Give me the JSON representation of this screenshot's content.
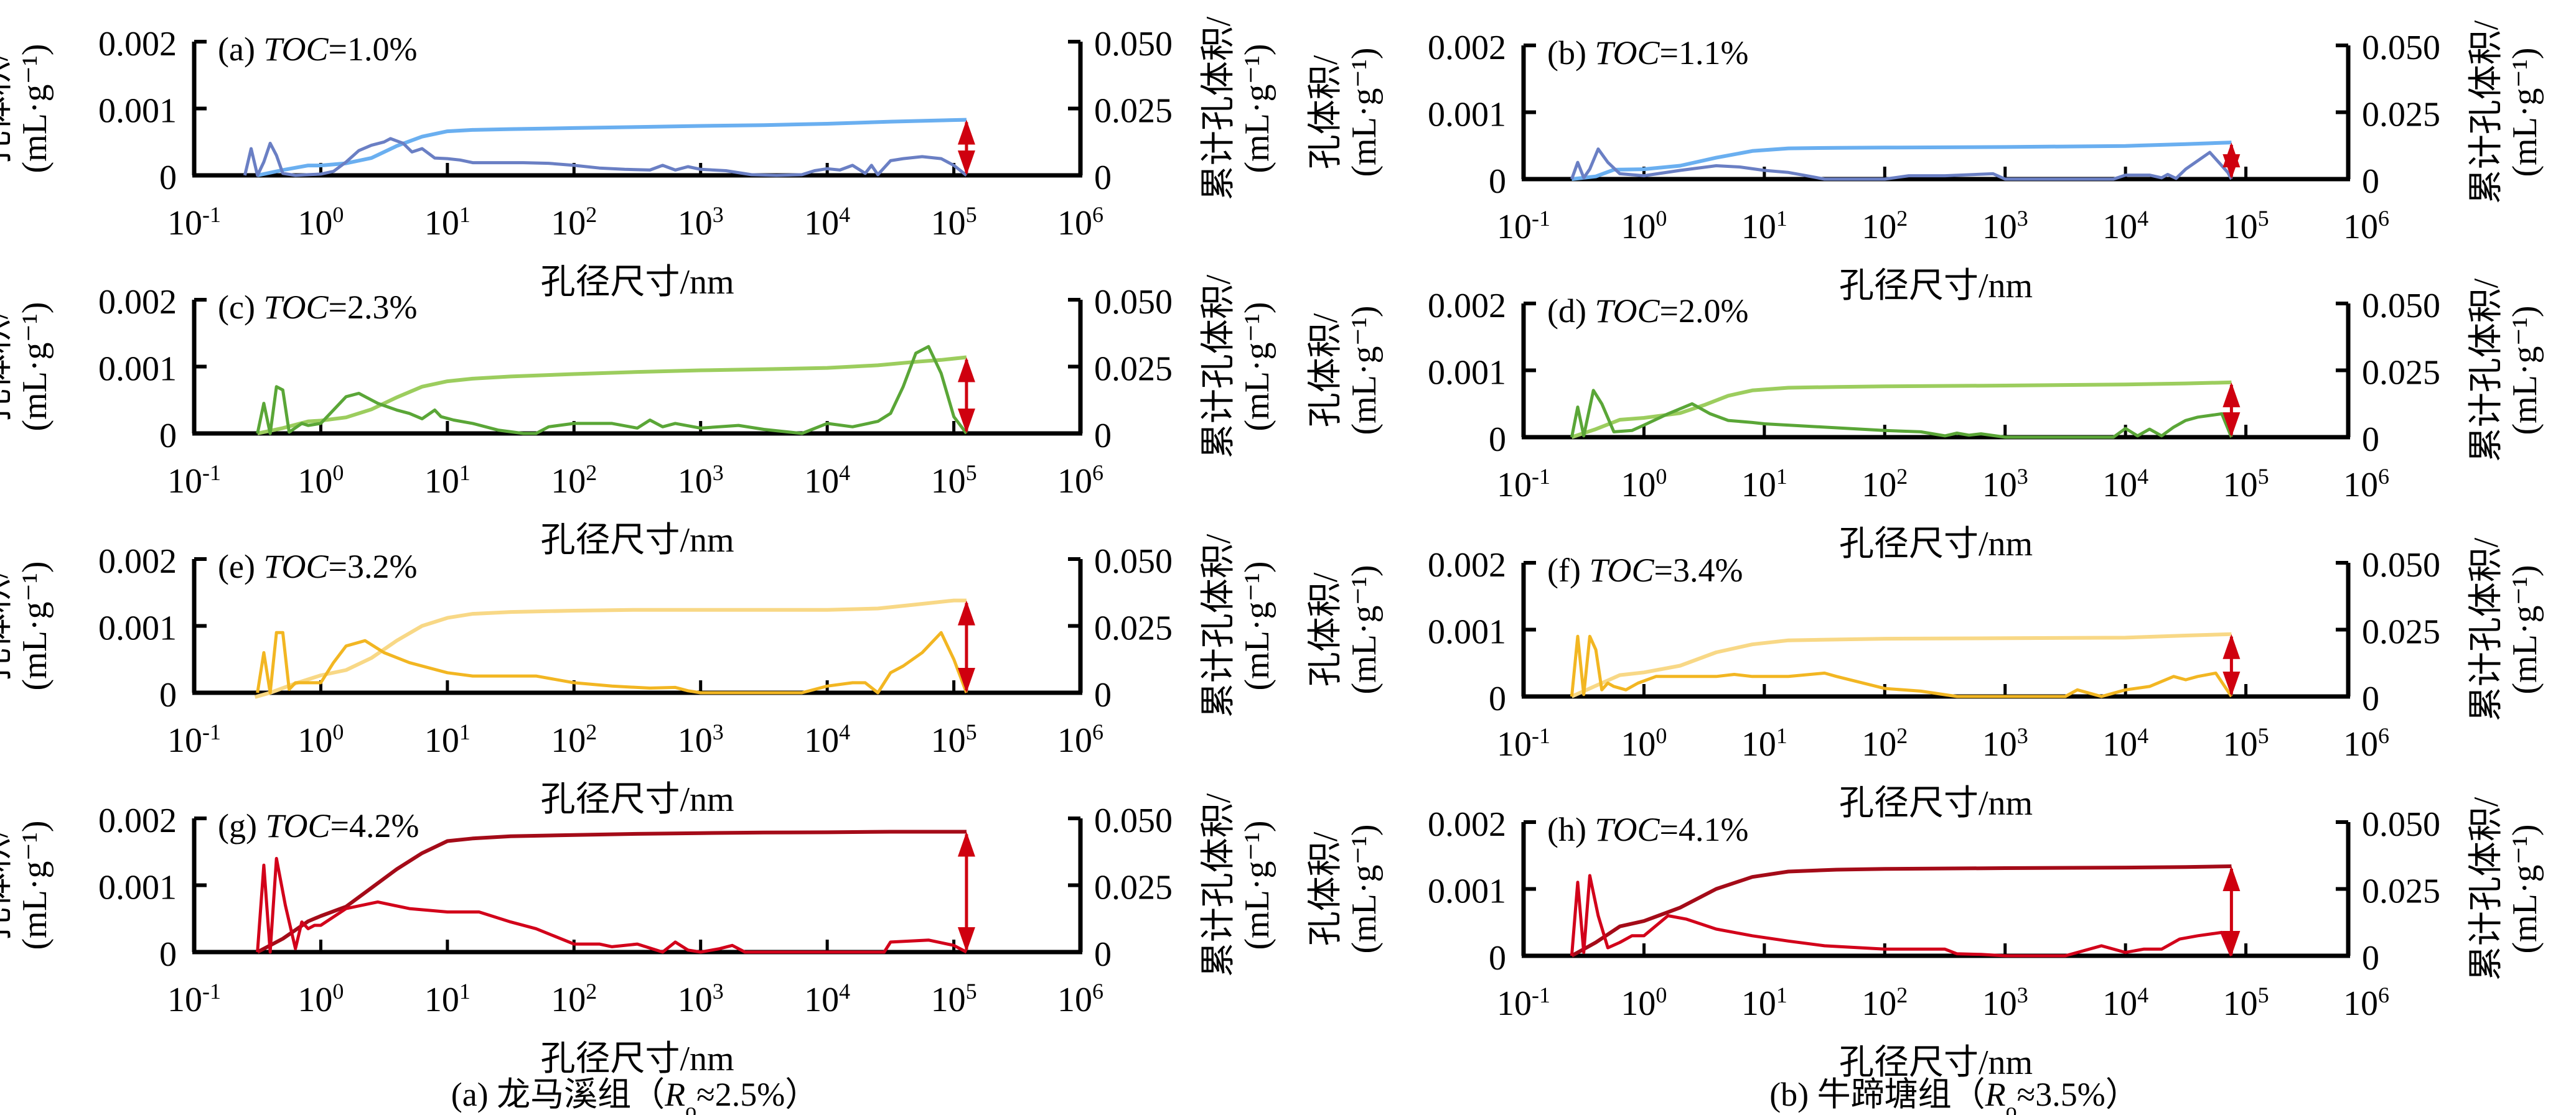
{
  "chart_data": {
    "type": "line",
    "figure_captions": [
      {
        "id": "a",
        "prefix": "(a) 龙马溪组（",
        "symbol": "R",
        "subscript": "o",
        "suffix": "≈2.5%）"
      },
      {
        "id": "b",
        "prefix": "(b) 牛蹄塘组（",
        "symbol": "R",
        "subscript": "o",
        "suffix": "≈3.5%）"
      }
    ],
    "xlabel": "孔径尺寸/nm",
    "ylabel_left": [
      "孔体积/",
      "(mL·g⁻¹)"
    ],
    "ylabel_right": [
      "累计孔体积/",
      "(mL·g⁻¹)"
    ],
    "x_scale": "log",
    "x_ticks": [
      {
        "base": "10",
        "exp": "-1",
        "value": -1
      },
      {
        "base": "10",
        "exp": "0",
        "value": 0
      },
      {
        "base": "10",
        "exp": "1",
        "value": 1
      },
      {
        "base": "10",
        "exp": "2",
        "value": 2
      },
      {
        "base": "10",
        "exp": "3",
        "value": 3
      },
      {
        "base": "10",
        "exp": "4",
        "value": 4
      },
      {
        "base": "10",
        "exp": "5",
        "value": 5
      },
      {
        "base": "10",
        "exp": "6",
        "value": 6
      }
    ],
    "y_left_ticks": [
      "0",
      "0.001",
      "0.002"
    ],
    "y_left_range": [
      0,
      0.002
    ],
    "y_right_ticks": [
      "0",
      "0.025",
      "0.050"
    ],
    "y_right_range": [
      0,
      0.05
    ],
    "colors": {
      "blue_dist": "#6a7fc4",
      "blue_cum": "#6aaff0",
      "green_dist": "#5aa637",
      "green_cum": "#9ccd5e",
      "yellow_dist": "#f2b622",
      "yellow_cum": "#f8d886",
      "red_dist": "#d2001a",
      "red_cum": "#a40b18",
      "arrow": "#cf000f",
      "axis": "#000000"
    },
    "panels": [
      {
        "id": "a",
        "label_prefix": "(a) ",
        "label_italic": "TOC",
        "label_suffix": "=1.0%",
        "column": "left",
        "row": 0,
        "palette": "blue",
        "x_max_log": 6,
        "arrow_x_log": 5.1,
        "dist_log_x": [
          -0.6,
          -0.55,
          -0.5,
          -0.45,
          -0.4,
          -0.35,
          -0.3,
          -0.2,
          -0.1,
          0,
          0.1,
          0.2,
          0.3,
          0.4,
          0.5,
          0.55,
          0.65,
          0.72,
          0.8,
          0.9,
          1,
          1.1,
          1.2,
          1.4,
          1.6,
          1.8,
          2,
          2.2,
          2.4,
          2.6,
          2.7,
          2.8,
          2.9,
          3,
          3.2,
          3.4,
          3.6,
          3.8,
          3.9,
          4,
          4.1,
          4.2,
          4.3,
          4.35,
          4.4,
          4.5,
          4.6,
          4.75,
          4.9,
          5.0,
          5.1
        ],
        "dist_y": [
          0,
          0.0004,
          0,
          0.0002,
          0.00048,
          0.0003,
          3e-05,
          0,
          1e-05,
          2e-05,
          6e-05,
          0.0002,
          0.00037,
          0.00045,
          0.0005,
          0.00055,
          0.00048,
          0.00035,
          0.0004,
          0.00026,
          0.00025,
          0.00023,
          0.00019,
          0.00019,
          0.00019,
          0.00018,
          0.00015,
          0.00011,
          9e-05,
          8e-05,
          0.00015,
          8e-05,
          0.00013,
          9e-05,
          7e-05,
          1e-05,
          0,
          1e-05,
          7e-05,
          0.0001,
          8e-05,
          0.00015,
          3e-05,
          0.00015,
          1e-05,
          0.00022,
          0.00025,
          0.00028,
          0.00025,
          0.00015,
          0
        ],
        "cum_log_x": [
          -0.5,
          -0.3,
          -0.1,
          0,
          0.2,
          0.4,
          0.6,
          0.8,
          1,
          1.2,
          1.5,
          2,
          2.5,
          3,
          3.5,
          4,
          4.5,
          5.1
        ],
        "cum_y": [
          0,
          0.002,
          0.0037,
          0.0037,
          0.0045,
          0.0065,
          0.011,
          0.0145,
          0.0165,
          0.017,
          0.0173,
          0.0177,
          0.0181,
          0.0185,
          0.0188,
          0.0193,
          0.0201,
          0.0208
        ]
      },
      {
        "id": "b",
        "label_prefix": "(b) ",
        "label_italic": "TOC",
        "label_suffix": "=1.1%",
        "column": "right",
        "row": 0,
        "palette": "blue",
        "x_max_log": 5.85,
        "arrow_x_log": 4.88,
        "dist_log_x": [
          -0.6,
          -0.55,
          -0.5,
          -0.45,
          -0.38,
          -0.3,
          -0.2,
          0,
          0.3,
          0.6,
          0.8,
          1,
          1.2,
          1.35,
          1.5,
          1.8,
          2,
          2.2,
          2.5,
          2.9,
          3,
          3.5,
          3.9,
          4,
          4.2,
          4.3,
          4.35,
          4.42,
          4.5,
          4.7,
          4.85,
          4.88
        ],
        "dist_y": [
          0,
          0.00025,
          2e-05,
          0.00015,
          0.00045,
          0.00025,
          8e-05,
          5e-05,
          0.00013,
          0.0002,
          0.00018,
          0.00013,
          0.0001,
          5e-05,
          0,
          0,
          0,
          5e-05,
          5e-05,
          8e-05,
          0,
          0,
          0,
          6e-05,
          6e-05,
          2e-05,
          7e-05,
          1e-05,
          0.00015,
          0.0004,
          0.0001,
          0
        ],
        "cum_log_x": [
          -0.6,
          -0.4,
          -0.25,
          0,
          0.3,
          0.6,
          0.9,
          1.2,
          1.6,
          2,
          3,
          4,
          4.5,
          4.88
        ],
        "cum_y": [
          0,
          0.001,
          0.0035,
          0.0037,
          0.005,
          0.008,
          0.0105,
          0.0115,
          0.0117,
          0.0118,
          0.012,
          0.0124,
          0.0131,
          0.0137
        ]
      },
      {
        "id": "c",
        "label_prefix": "(c) ",
        "label_italic": "TOC",
        "label_suffix": "=2.3%",
        "column": "left",
        "row": 1,
        "palette": "green",
        "x_max_log": 6,
        "arrow_x_log": 5.1,
        "dist_log_x": [
          -0.5,
          -0.45,
          -0.4,
          -0.35,
          -0.3,
          -0.25,
          -0.15,
          -0.1,
          0,
          0.1,
          0.2,
          0.3,
          0.45,
          0.6,
          0.7,
          0.8,
          0.9,
          0.95,
          1.05,
          1.2,
          1.4,
          1.6,
          1.7,
          1.8,
          2,
          2.3,
          2.5,
          2.6,
          2.7,
          2.8,
          3,
          3.3,
          3.5,
          3.8,
          4,
          4.2,
          4.4,
          4.5,
          4.6,
          4.7,
          4.8,
          4.9,
          5.0,
          5.1
        ],
        "dist_y": [
          0,
          0.00045,
          0,
          0.0007,
          0.00065,
          2e-05,
          0.00015,
          0.00012,
          0.00015,
          0.00035,
          0.00055,
          0.0006,
          0.00045,
          0.00035,
          0.0003,
          0.00022,
          0.00035,
          0.00025,
          0.0002,
          0.00015,
          5e-05,
          0,
          0,
          0.0001,
          0.00015,
          0.00015,
          8e-05,
          0.0002,
          0.0001,
          0.00015,
          8e-05,
          0.00012,
          6e-05,
          0,
          0.00015,
          0.0001,
          0.00018,
          0.0003,
          0.0007,
          0.0012,
          0.0013,
          0.0009,
          0.00025,
          0
        ],
        "cum_log_x": [
          -0.5,
          -0.3,
          -0.1,
          0,
          0.2,
          0.4,
          0.6,
          0.8,
          1,
          1.2,
          1.5,
          2,
          2.5,
          3,
          3.5,
          4,
          4.4,
          4.7,
          4.9,
          5.1
        ],
        "cum_y": [
          0,
          0.002,
          0.0045,
          0.0048,
          0.006,
          0.009,
          0.0135,
          0.0175,
          0.0195,
          0.0205,
          0.0213,
          0.0222,
          0.023,
          0.0236,
          0.024,
          0.0245,
          0.0255,
          0.0268,
          0.0275,
          0.0285
        ]
      },
      {
        "id": "d",
        "label_prefix": "(d) ",
        "label_italic": "TOC",
        "label_suffix": "=2.0%",
        "column": "right",
        "row": 1,
        "palette": "green",
        "x_max_log": 5.85,
        "arrow_x_log": 4.88,
        "dist_log_x": [
          -0.6,
          -0.55,
          -0.5,
          -0.42,
          -0.35,
          -0.25,
          -0.1,
          0,
          0.2,
          0.4,
          0.55,
          0.7,
          0.9,
          1,
          1.5,
          2,
          2.3,
          2.5,
          2.6,
          2.7,
          2.8,
          3,
          3.5,
          3.9,
          4,
          4.1,
          4.2,
          4.3,
          4.4,
          4.5,
          4.6,
          4.8,
          4.88
        ],
        "dist_y": [
          0,
          0.00045,
          2e-05,
          0.0007,
          0.0005,
          8e-05,
          0.0001,
          0.00018,
          0.00035,
          0.0005,
          0.00035,
          0.00025,
          0.00022,
          0.0002,
          0.00015,
          0.0001,
          8e-05,
          2e-05,
          6e-05,
          3e-05,
          5e-05,
          0,
          0,
          0,
          0.00013,
          2e-05,
          0.00012,
          2e-05,
          0.00015,
          0.00025,
          0.0003,
          0.00035,
          0
        ],
        "cum_log_x": [
          -0.6,
          -0.4,
          -0.2,
          0,
          0.3,
          0.5,
          0.7,
          0.9,
          1.2,
          1.6,
          2,
          3,
          4,
          4.5,
          4.88
        ],
        "cum_y": [
          0,
          0.003,
          0.0065,
          0.0072,
          0.009,
          0.012,
          0.0155,
          0.0175,
          0.0185,
          0.0188,
          0.019,
          0.0193,
          0.0197,
          0.0201,
          0.0205
        ]
      },
      {
        "id": "e",
        "label_prefix": "(e) ",
        "label_italic": "TOC",
        "label_suffix": "=3.2%",
        "column": "left",
        "row": 2,
        "palette": "yellow",
        "x_max_log": 6,
        "arrow_x_log": 5.1,
        "dist_log_x": [
          -0.5,
          -0.45,
          -0.4,
          -0.35,
          -0.3,
          -0.25,
          -0.2,
          -0.1,
          0,
          0.1,
          0.2,
          0.35,
          0.5,
          0.7,
          0.9,
          1,
          1.2,
          1.5,
          1.7,
          2,
          2.3,
          2.6,
          2.8,
          2.9,
          3,
          3.5,
          3.8,
          4,
          4.2,
          4.3,
          4.4,
          4.5,
          4.6,
          4.75,
          4.9,
          5.0,
          5.1
        ],
        "dist_y": [
          0,
          0.0006,
          0,
          0.0009,
          0.0009,
          5e-05,
          0.00015,
          0.00015,
          0.00015,
          0.00045,
          0.0007,
          0.00078,
          0.0006,
          0.00045,
          0.00035,
          0.0003,
          0.00025,
          0.00025,
          0.00025,
          0.00015,
          0.0001,
          7e-05,
          8e-05,
          3e-05,
          0,
          0,
          0,
          0.0001,
          0.00015,
          0.00015,
          0,
          0.0003,
          0.0004,
          0.0006,
          0.0009,
          0.0005,
          0
        ],
        "cum_log_x": [
          -0.52,
          -0.4,
          -0.2,
          0,
          0.2,
          0.4,
          0.6,
          0.8,
          1,
          1.2,
          1.5,
          2,
          2.5,
          3,
          3.5,
          4,
          4.4,
          4.7,
          5.0,
          5.1
        ],
        "cum_y": [
          -0.0016,
          0,
          0.0035,
          0.0065,
          0.0085,
          0.013,
          0.0195,
          0.025,
          0.028,
          0.0295,
          0.0302,
          0.0307,
          0.031,
          0.031,
          0.031,
          0.031,
          0.0315,
          0.033,
          0.0345,
          0.0345
        ]
      },
      {
        "id": "f",
        "label_prefix": "(f) ",
        "label_italic": "TOC",
        "label_suffix": "=3.4%",
        "column": "right",
        "row": 2,
        "palette": "yellow",
        "x_max_log": 5.85,
        "arrow_x_log": 4.88,
        "dist_log_x": [
          -0.6,
          -0.55,
          -0.5,
          -0.45,
          -0.4,
          -0.35,
          -0.3,
          -0.25,
          -0.15,
          -0.05,
          0.1,
          0.3,
          0.6,
          0.75,
          0.9,
          1.2,
          1.5,
          1.6,
          2,
          2.3,
          2.6,
          3,
          3.5,
          3.6,
          3.8,
          4,
          4.2,
          4.4,
          4.5,
          4.6,
          4.75,
          4.88
        ],
        "dist_y": [
          0,
          0.0009,
          3e-05,
          0.0009,
          0.0007,
          0.0001,
          0.0002,
          0.00015,
          0.0001,
          0.0002,
          0.0003,
          0.0003,
          0.0003,
          0.00033,
          0.0003,
          0.0003,
          0.00035,
          0.0003,
          0.00012,
          8e-05,
          0,
          0,
          0,
          0.0001,
          0,
          0.0001,
          0.00015,
          0.0003,
          0.00025,
          0.0003,
          0.00035,
          0
        ],
        "cum_log_x": [
          -0.6,
          -0.4,
          -0.2,
          0,
          0.3,
          0.6,
          0.9,
          1.2,
          1.6,
          2,
          3,
          4,
          4.5,
          4.88
        ],
        "cum_y": [
          0,
          0.004,
          0.008,
          0.009,
          0.0115,
          0.0165,
          0.0195,
          0.021,
          0.0213,
          0.0216,
          0.0218,
          0.022,
          0.0228,
          0.0233
        ]
      },
      {
        "id": "g",
        "label_prefix": "(g) ",
        "label_italic": "TOC",
        "label_suffix": "=4.2%",
        "column": "left",
        "row": 3,
        "palette": "red",
        "x_max_log": 6,
        "arrow_x_log": 5.1,
        "dist_log_x": [
          -0.5,
          -0.45,
          -0.4,
          -0.35,
          -0.28,
          -0.2,
          -0.15,
          -0.1,
          -0.05,
          0,
          0.2,
          0.45,
          0.7,
          1,
          1.25,
          1.5,
          1.7,
          2,
          2.2,
          2.3,
          2.5,
          2.7,
          2.8,
          2.9,
          3.0,
          3.15,
          3.25,
          3.35,
          3.5,
          4,
          4.45,
          4.5,
          4.8,
          5.0,
          5.1
        ],
        "dist_y": [
          0,
          0.0013,
          0,
          0.0014,
          0.0007,
          5e-05,
          0.00045,
          0.00035,
          0.0004,
          0.0004,
          0.00065,
          0.00075,
          0.00065,
          0.0006,
          0.0006,
          0.00045,
          0.00035,
          0.00012,
          0.00012,
          8e-05,
          0.00012,
          0,
          0.00015,
          3e-05,
          0,
          5e-05,
          0.0001,
          0,
          0,
          0,
          0,
          0.00015,
          0.00018,
          0.0001,
          0
        ],
        "cum_log_x": [
          -0.5,
          -0.3,
          -0.1,
          0,
          0.2,
          0.4,
          0.6,
          0.8,
          1,
          1.2,
          1.5,
          2,
          2.5,
          3,
          3.5,
          4,
          4.5,
          5.1
        ],
        "cum_y": [
          0,
          0.005,
          0.0115,
          0.0135,
          0.017,
          0.024,
          0.031,
          0.037,
          0.0415,
          0.0425,
          0.0433,
          0.0438,
          0.0442,
          0.0445,
          0.0447,
          0.0448,
          0.045,
          0.045
        ]
      },
      {
        "id": "h",
        "label_prefix": "(h) ",
        "label_italic": "TOC",
        "label_suffix": "=4.1%",
        "column": "right",
        "row": 3,
        "palette": "red",
        "x_max_log": 5.85,
        "arrow_x_log": 4.88,
        "dist_log_x": [
          -0.6,
          -0.55,
          -0.5,
          -0.45,
          -0.38,
          -0.3,
          -0.2,
          -0.1,
          0,
          0.2,
          0.35,
          0.6,
          0.9,
          1.2,
          1.5,
          2,
          2.5,
          2.6,
          2.8,
          3,
          3.5,
          3.8,
          4,
          4.15,
          4.3,
          4.45,
          4.6,
          4.8,
          4.88
        ],
        "dist_y": [
          0,
          0.0011,
          5e-05,
          0.0012,
          0.0006,
          0.00012,
          0.0002,
          0.0003,
          0.0003,
          0.0006,
          0.00055,
          0.0004,
          0.0003,
          0.00022,
          0.00015,
          0.0001,
          0.0001,
          3e-05,
          2e-05,
          0,
          0,
          0.00015,
          5e-05,
          0.0001,
          0.0001,
          0.00025,
          0.0003,
          0.00035,
          0
        ],
        "cum_log_x": [
          -0.6,
          -0.4,
          -0.2,
          0,
          0.3,
          0.6,
          0.9,
          1.2,
          1.6,
          2,
          3,
          4,
          4.5,
          4.88
        ],
        "cum_y": [
          0,
          0.005,
          0.011,
          0.013,
          0.018,
          0.025,
          0.0295,
          0.0315,
          0.0322,
          0.0325,
          0.0328,
          0.033,
          0.0332,
          0.0335
        ]
      }
    ]
  }
}
